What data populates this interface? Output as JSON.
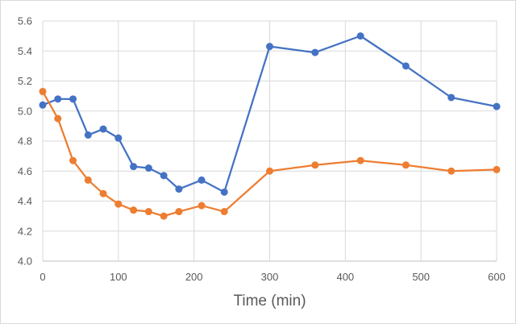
{
  "chart_data": {
    "type": "line",
    "title": "",
    "xlabel": "Time (min)",
    "ylabel": "",
    "xlim": [
      0,
      600
    ],
    "ylim": [
      4.0,
      5.6
    ],
    "x_ticks": [
      0,
      100,
      200,
      300,
      400,
      500,
      600
    ],
    "y_ticks": [
      "4.0",
      "4.2",
      "4.4",
      "4.6",
      "4.8",
      "5.0",
      "5.2",
      "5.4",
      "5.6"
    ],
    "grid": true,
    "legend": "none",
    "series": [
      {
        "color": "#4472C4",
        "points": [
          [
            0,
            5.04
          ],
          [
            20,
            5.08
          ],
          [
            40,
            5.08
          ],
          [
            60,
            4.84
          ],
          [
            80,
            4.88
          ],
          [
            100,
            4.82
          ],
          [
            120,
            4.63
          ],
          [
            140,
            4.62
          ],
          [
            160,
            4.57
          ],
          [
            180,
            4.48
          ],
          [
            210,
            4.54
          ],
          [
            240,
            4.46
          ],
          [
            300,
            5.43
          ],
          [
            360,
            5.39
          ],
          [
            420,
            5.5
          ],
          [
            480,
            5.3
          ],
          [
            540,
            5.09
          ],
          [
            600,
            5.03
          ]
        ]
      },
      {
        "color": "#ED7D31",
        "points": [
          [
            0,
            5.13
          ],
          [
            20,
            4.95
          ],
          [
            40,
            4.67
          ],
          [
            60,
            4.54
          ],
          [
            80,
            4.45
          ],
          [
            100,
            4.38
          ],
          [
            120,
            4.34
          ],
          [
            140,
            4.33
          ],
          [
            160,
            4.3
          ],
          [
            180,
            4.33
          ],
          [
            210,
            4.37
          ],
          [
            240,
            4.33
          ],
          [
            300,
            4.6
          ],
          [
            360,
            4.64
          ],
          [
            420,
            4.67
          ],
          [
            480,
            4.64
          ],
          [
            540,
            4.6
          ],
          [
            600,
            4.61
          ]
        ]
      }
    ]
  }
}
